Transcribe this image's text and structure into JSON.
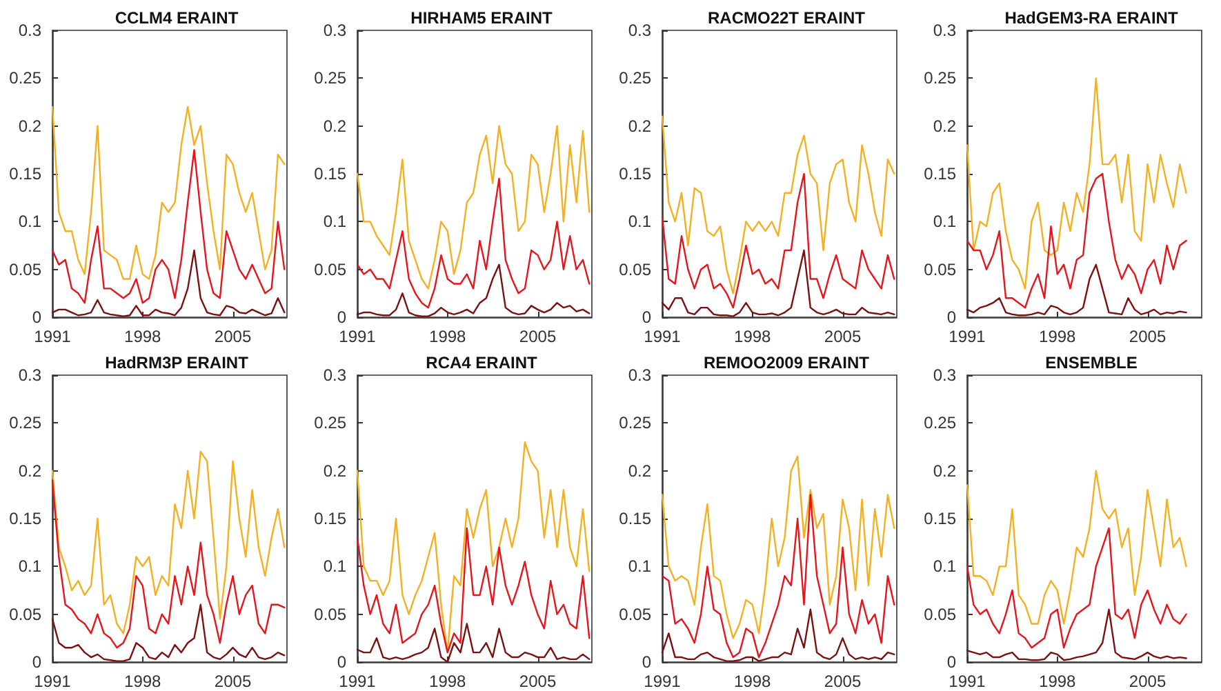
{
  "chart_data": [
    {
      "type": "line",
      "title": "CCLM4 ERAINT",
      "marker": "none",
      "line_style": "solid",
      "xlim": [
        1991,
        2009.2
      ],
      "xticks": [
        1991,
        1998,
        2005
      ],
      "ylim": [
        0,
        0.3
      ],
      "yticks": [
        0,
        0.05,
        0.1,
        0.15,
        0.2,
        0.25,
        0.3
      ],
      "x": [
        1991,
        1991.5,
        1992,
        1992.5,
        1993,
        1993.5,
        1994,
        1994.5,
        1995,
        1995.5,
        1996,
        1996.5,
        1997,
        1997.5,
        1998,
        1998.5,
        1999,
        1999.5,
        2000,
        2000.5,
        2001,
        2001.5,
        2002,
        2002.5,
        2003,
        2003.5,
        2004,
        2004.5,
        2005,
        2005.5,
        2006,
        2006.5,
        2007,
        2007.5,
        2008,
        2008.5,
        2009
      ],
      "series": [
        {
          "color": "#f5b021",
          "values": [
            0.22,
            0.11,
            0.09,
            0.09,
            0.06,
            0.045,
            0.11,
            0.2,
            0.07,
            0.065,
            0.06,
            0.04,
            0.04,
            0.075,
            0.045,
            0.04,
            0.065,
            0.12,
            0.11,
            0.12,
            0.18,
            0.22,
            0.18,
            0.2,
            0.14,
            0.09,
            0.05,
            0.17,
            0.16,
            0.13,
            0.11,
            0.13,
            0.09,
            0.05,
            0.07,
            0.17,
            0.16
          ]
        },
        {
          "color": "#e8141c",
          "values": [
            0.07,
            0.055,
            0.06,
            0.03,
            0.025,
            0.015,
            0.06,
            0.095,
            0.03,
            0.03,
            0.025,
            0.02,
            0.025,
            0.04,
            0.015,
            0.02,
            0.05,
            0.06,
            0.05,
            0.02,
            0.06,
            0.12,
            0.175,
            0.11,
            0.05,
            0.025,
            0.02,
            0.09,
            0.07,
            0.05,
            0.04,
            0.055,
            0.04,
            0.025,
            0.03,
            0.1,
            0.05
          ]
        },
        {
          "color": "#7a1010",
          "values": [
            0.005,
            0.008,
            0.008,
            0.005,
            0.002,
            0.003,
            0.005,
            0.018,
            0.005,
            0.003,
            0.002,
            0.001,
            0.002,
            0.012,
            0.002,
            0.002,
            0.008,
            0.005,
            0.004,
            0.002,
            0.01,
            0.03,
            0.07,
            0.02,
            0.005,
            0.003,
            0.002,
            0.012,
            0.01,
            0.005,
            0.004,
            0.008,
            0.005,
            0.002,
            0.004,
            0.02,
            0.005
          ]
        }
      ]
    },
    {
      "type": "line",
      "title": "HIRHAM5 ERAINT",
      "marker": "none",
      "line_style": "solid",
      "xlim": [
        1991,
        2009.2
      ],
      "xticks": [
        1991,
        1998,
        2005
      ],
      "ylim": [
        0,
        0.3
      ],
      "yticks": [
        0,
        0.05,
        0.1,
        0.15,
        0.2,
        0.25,
        0.3
      ],
      "x": [
        1991,
        1991.5,
        1992,
        1992.5,
        1993,
        1993.5,
        1994,
        1994.5,
        1995,
        1995.5,
        1996,
        1996.5,
        1997,
        1997.5,
        1998,
        1998.5,
        1999,
        1999.5,
        2000,
        2000.5,
        2001,
        2001.5,
        2002,
        2002.5,
        2003,
        2003.5,
        2004,
        2004.5,
        2005,
        2005.5,
        2006,
        2006.5,
        2007,
        2007.5,
        2008,
        2008.5,
        2009
      ],
      "series": [
        {
          "color": "#f5b021",
          "values": [
            0.15,
            0.1,
            0.1,
            0.085,
            0.075,
            0.065,
            0.11,
            0.165,
            0.08,
            0.06,
            0.04,
            0.03,
            0.06,
            0.1,
            0.09,
            0.045,
            0.07,
            0.12,
            0.13,
            0.17,
            0.19,
            0.14,
            0.2,
            0.16,
            0.15,
            0.09,
            0.1,
            0.17,
            0.16,
            0.11,
            0.15,
            0.2,
            0.1,
            0.18,
            0.12,
            0.195,
            0.11
          ]
        },
        {
          "color": "#e8141c",
          "values": [
            0.055,
            0.045,
            0.05,
            0.04,
            0.04,
            0.03,
            0.06,
            0.09,
            0.04,
            0.025,
            0.015,
            0.01,
            0.03,
            0.065,
            0.04,
            0.035,
            0.035,
            0.045,
            0.03,
            0.08,
            0.05,
            0.1,
            0.145,
            0.06,
            0.04,
            0.025,
            0.03,
            0.07,
            0.065,
            0.05,
            0.06,
            0.1,
            0.05,
            0.085,
            0.05,
            0.06,
            0.035
          ]
        },
        {
          "color": "#7a1010",
          "values": [
            0.003,
            0.005,
            0.005,
            0.003,
            0.002,
            0.002,
            0.008,
            0.025,
            0.005,
            0.002,
            0.001,
            0.001,
            0.004,
            0.01,
            0.005,
            0.003,
            0.005,
            0.008,
            0.004,
            0.015,
            0.02,
            0.04,
            0.055,
            0.01,
            0.005,
            0.003,
            0.004,
            0.012,
            0.008,
            0.005,
            0.008,
            0.015,
            0.01,
            0.012,
            0.006,
            0.008,
            0.004
          ]
        }
      ]
    },
    {
      "type": "line",
      "title": "RACMO22T ERAINT",
      "marker": "none",
      "line_style": "solid",
      "xlim": [
        1991,
        2009.2
      ],
      "xticks": [
        1991,
        1998,
        2005
      ],
      "ylim": [
        0,
        0.3
      ],
      "yticks": [
        0,
        0.05,
        0.1,
        0.15,
        0.2,
        0.25,
        0.3
      ],
      "x": [
        1991,
        1991.5,
        1992,
        1992.5,
        1993,
        1993.5,
        1994,
        1994.5,
        1995,
        1995.5,
        1996,
        1996.5,
        1997,
        1997.5,
        1998,
        1998.5,
        1999,
        1999.5,
        2000,
        2000.5,
        2001,
        2001.5,
        2002,
        2002.5,
        2003,
        2003.5,
        2004,
        2004.5,
        2005,
        2005.5,
        2006,
        2006.5,
        2007,
        2007.5,
        2008,
        2008.5,
        2009
      ],
      "series": [
        {
          "color": "#f5b021",
          "values": [
            0.21,
            0.12,
            0.1,
            0.13,
            0.075,
            0.135,
            0.13,
            0.09,
            0.085,
            0.095,
            0.05,
            0.025,
            0.06,
            0.1,
            0.09,
            0.1,
            0.09,
            0.1,
            0.085,
            0.13,
            0.13,
            0.17,
            0.19,
            0.15,
            0.14,
            0.07,
            0.14,
            0.16,
            0.165,
            0.12,
            0.1,
            0.18,
            0.15,
            0.11,
            0.085,
            0.165,
            0.15
          ]
        },
        {
          "color": "#e8141c",
          "values": [
            0.105,
            0.04,
            0.035,
            0.085,
            0.05,
            0.03,
            0.05,
            0.055,
            0.03,
            0.035,
            0.025,
            0.01,
            0.04,
            0.075,
            0.045,
            0.05,
            0.035,
            0.04,
            0.03,
            0.07,
            0.07,
            0.12,
            0.15,
            0.04,
            0.04,
            0.02,
            0.045,
            0.065,
            0.04,
            0.035,
            0.03,
            0.07,
            0.05,
            0.04,
            0.03,
            0.065,
            0.04
          ]
        },
        {
          "color": "#7a1010",
          "values": [
            0.015,
            0.008,
            0.02,
            0.02,
            0.005,
            0.003,
            0.01,
            0.01,
            0.003,
            0.002,
            0.002,
            0.001,
            0.005,
            0.015,
            0.005,
            0.003,
            0.003,
            0.004,
            0.002,
            0.005,
            0.01,
            0.04,
            0.07,
            0.01,
            0.005,
            0.003,
            0.005,
            0.008,
            0.004,
            0.003,
            0.003,
            0.01,
            0.005,
            0.004,
            0.003,
            0.005,
            0.003
          ]
        }
      ]
    },
    {
      "type": "line",
      "title": "HadGEM3-RA ERAINT",
      "marker": "none",
      "line_style": "solid",
      "xlim": [
        1991,
        2009.2
      ],
      "xticks": [
        1991,
        1998,
        2005
      ],
      "ylim": [
        0,
        0.3
      ],
      "yticks": [
        0,
        0.05,
        0.1,
        0.15,
        0.2,
        0.25,
        0.3
      ],
      "x": [
        1991,
        1991.5,
        1992,
        1992.5,
        1993,
        1993.5,
        1994,
        1994.5,
        1995,
        1995.5,
        1996,
        1996.5,
        1997,
        1997.5,
        1998,
        1998.5,
        1999,
        1999.5,
        2000,
        2000.5,
        2001,
        2001.5,
        2002,
        2002.5,
        2003,
        2003.5,
        2004,
        2004.5,
        2005,
        2005.5,
        2006,
        2006.5,
        2007,
        2007.5,
        2008
      ],
      "series": [
        {
          "color": "#f5b021",
          "values": [
            0.18,
            0.07,
            0.1,
            0.095,
            0.13,
            0.14,
            0.09,
            0.06,
            0.05,
            0.03,
            0.1,
            0.12,
            0.07,
            0.065,
            0.07,
            0.12,
            0.09,
            0.13,
            0.11,
            0.16,
            0.25,
            0.16,
            0.16,
            0.17,
            0.12,
            0.17,
            0.09,
            0.08,
            0.16,
            0.12,
            0.17,
            0.14,
            0.115,
            0.16,
            0.13
          ]
        },
        {
          "color": "#e8141c",
          "values": [
            0.08,
            0.07,
            0.07,
            0.05,
            0.065,
            0.09,
            0.02,
            0.02,
            0.015,
            0.01,
            0.03,
            0.045,
            0.02,
            0.095,
            0.045,
            0.055,
            0.03,
            0.06,
            0.065,
            0.13,
            0.145,
            0.15,
            0.1,
            0.06,
            0.04,
            0.055,
            0.045,
            0.025,
            0.05,
            0.06,
            0.035,
            0.075,
            0.05,
            0.075,
            0.08
          ]
        },
        {
          "color": "#7a1010",
          "values": [
            0.008,
            0.005,
            0.01,
            0.012,
            0.015,
            0.02,
            0.005,
            0.003,
            0.002,
            0.002,
            0.003,
            0.005,
            0.003,
            0.012,
            0.01,
            0.005,
            0.003,
            0.005,
            0.01,
            0.04,
            0.055,
            0.03,
            0.005,
            0.004,
            0.003,
            0.02,
            0.008,
            0.003,
            0.005,
            0.008,
            0.003,
            0.005,
            0.004,
            0.006,
            0.005
          ]
        }
      ]
    },
    {
      "type": "line",
      "title": "HadRM3P ERAINT",
      "marker": "none",
      "line_style": "solid",
      "xlim": [
        1991,
        2009.2
      ],
      "xticks": [
        1991,
        1998,
        2005
      ],
      "ylim": [
        0,
        0.3
      ],
      "yticks": [
        0,
        0.05,
        0.1,
        0.15,
        0.2,
        0.25,
        0.3
      ],
      "x": [
        1991,
        1991.5,
        1992,
        1992.5,
        1993,
        1993.5,
        1994,
        1994.5,
        1995,
        1995.5,
        1996,
        1996.5,
        1997,
        1997.5,
        1998,
        1998.5,
        1999,
        1999.5,
        2000,
        2000.5,
        2001,
        2001.5,
        2002,
        2002.5,
        2003,
        2003.5,
        2004,
        2004.5,
        2005,
        2005.5,
        2006,
        2006.5,
        2007,
        2007.5,
        2008,
        2008.5,
        2009
      ],
      "series": [
        {
          "color": "#f5b021",
          "values": [
            0.2,
            0.12,
            0.1,
            0.075,
            0.085,
            0.07,
            0.08,
            0.15,
            0.06,
            0.07,
            0.04,
            0.03,
            0.06,
            0.11,
            0.1,
            0.11,
            0.07,
            0.09,
            0.08,
            0.165,
            0.14,
            0.2,
            0.15,
            0.22,
            0.21,
            0.13,
            0.045,
            0.1,
            0.21,
            0.15,
            0.11,
            0.18,
            0.12,
            0.09,
            0.13,
            0.16,
            0.12
          ]
        },
        {
          "color": "#e8141c",
          "values": [
            0.19,
            0.11,
            0.06,
            0.055,
            0.045,
            0.04,
            0.03,
            0.05,
            0.03,
            0.025,
            0.015,
            0.02,
            0.035,
            0.09,
            0.08,
            0.035,
            0.03,
            0.05,
            0.04,
            0.09,
            0.06,
            0.1,
            0.07,
            0.125,
            0.07,
            0.05,
            0.02,
            0.06,
            0.09,
            0.05,
            0.07,
            0.08,
            0.04,
            0.03,
            0.06,
            0.06,
            0.057
          ]
        },
        {
          "color": "#7a1010",
          "values": [
            0.045,
            0.02,
            0.015,
            0.015,
            0.018,
            0.01,
            0.005,
            0.008,
            0.003,
            0.002,
            0.001,
            0.001,
            0.003,
            0.02,
            0.015,
            0.005,
            0.003,
            0.01,
            0.005,
            0.018,
            0.01,
            0.02,
            0.025,
            0.06,
            0.01,
            0.005,
            0.003,
            0.008,
            0.015,
            0.008,
            0.005,
            0.015,
            0.005,
            0.003,
            0.005,
            0.01,
            0.007
          ]
        }
      ]
    },
    {
      "type": "line",
      "title": "RCA4 ERAINT",
      "marker": "none",
      "line_style": "solid",
      "xlim": [
        1991,
        2009.2
      ],
      "xticks": [
        1991,
        1998,
        2005
      ],
      "ylim": [
        0,
        0.3
      ],
      "yticks": [
        0,
        0.05,
        0.1,
        0.15,
        0.2,
        0.25,
        0.3
      ],
      "x": [
        1991,
        1991.5,
        1992,
        1992.5,
        1993,
        1993.5,
        1994,
        1994.5,
        1995,
        1995.5,
        1996,
        1996.5,
        1997,
        1997.5,
        1998,
        1998.5,
        1999,
        1999.5,
        2000,
        2000.5,
        2001,
        2001.5,
        2002,
        2002.5,
        2003,
        2003.5,
        2004,
        2004.5,
        2005,
        2005.5,
        2006,
        2006.5,
        2007,
        2007.5,
        2008,
        2008.5,
        2009
      ],
      "series": [
        {
          "color": "#f5b021",
          "values": [
            0.2,
            0.1,
            0.085,
            0.085,
            0.07,
            0.085,
            0.15,
            0.07,
            0.05,
            0.07,
            0.085,
            0.11,
            0.135,
            0.06,
            0.01,
            0.09,
            0.08,
            0.16,
            0.13,
            0.16,
            0.18,
            0.1,
            0.12,
            0.15,
            0.12,
            0.15,
            0.23,
            0.21,
            0.2,
            0.13,
            0.18,
            0.12,
            0.18,
            0.12,
            0.1,
            0.16,
            0.095
          ]
        },
        {
          "color": "#e8141c",
          "values": [
            0.13,
            0.08,
            0.05,
            0.07,
            0.04,
            0.03,
            0.06,
            0.02,
            0.025,
            0.03,
            0.05,
            0.06,
            0.08,
            0.04,
            0.01,
            0.03,
            0.02,
            0.14,
            0.07,
            0.07,
            0.1,
            0.06,
            0.12,
            0.08,
            0.06,
            0.08,
            0.105,
            0.07,
            0.05,
            0.035,
            0.085,
            0.05,
            0.06,
            0.04,
            0.035,
            0.09,
            0.025
          ]
        },
        {
          "color": "#7a1010",
          "values": [
            0.013,
            0.01,
            0.01,
            0.025,
            0.005,
            0.003,
            0.005,
            0.003,
            0.005,
            0.008,
            0.01,
            0.015,
            0.035,
            0.005,
            0,
            0.02,
            0.01,
            0.04,
            0.01,
            0.01,
            0.02,
            0.005,
            0.035,
            0.01,
            0.005,
            0.005,
            0.01,
            0.008,
            0.005,
            0.005,
            0.015,
            0.003,
            0.005,
            0.003,
            0.003,
            0.008,
            0.003
          ]
        }
      ]
    },
    {
      "type": "line",
      "title": "REMOO2009 ERAINT",
      "marker": "none",
      "line_style": "solid",
      "xlim": [
        1991,
        2009.2
      ],
      "xticks": [
        1991,
        1998,
        2005
      ],
      "ylim": [
        0,
        0.3
      ],
      "yticks": [
        0,
        0.05,
        0.1,
        0.15,
        0.2,
        0.25,
        0.3
      ],
      "x": [
        1991,
        1991.5,
        1992,
        1992.5,
        1993,
        1993.5,
        1994,
        1994.5,
        1995,
        1995.5,
        1996,
        1996.5,
        1997,
        1997.5,
        1998,
        1998.5,
        1999,
        1999.5,
        2000,
        2000.5,
        2001,
        2001.5,
        2002,
        2002.5,
        2003,
        2003.5,
        2004,
        2004.5,
        2005,
        2005.5,
        2006,
        2006.5,
        2007,
        2007.5,
        2008,
        2008.5,
        2009
      ],
      "series": [
        {
          "color": "#f5b021",
          "values": [
            0.175,
            0.1,
            0.085,
            0.09,
            0.085,
            0.06,
            0.12,
            0.165,
            0.09,
            0.085,
            0.05,
            0.025,
            0.04,
            0.065,
            0.06,
            0.03,
            0.08,
            0.15,
            0.1,
            0.13,
            0.2,
            0.215,
            0.13,
            0.18,
            0.14,
            0.155,
            0.06,
            0.09,
            0.17,
            0.14,
            0.075,
            0.17,
            0.08,
            0.16,
            0.11,
            0.175,
            0.14
          ]
        },
        {
          "color": "#e8141c",
          "values": [
            0.09,
            0.085,
            0.04,
            0.045,
            0.035,
            0.02,
            0.05,
            0.1,
            0.055,
            0.05,
            0.02,
            0.005,
            0.01,
            0.035,
            0.03,
            0.005,
            0.02,
            0.04,
            0.06,
            0.09,
            0.08,
            0.15,
            0.06,
            0.175,
            0.09,
            0.06,
            0.03,
            0.04,
            0.12,
            0.05,
            0.03,
            0.065,
            0.04,
            0.05,
            0.02,
            0.09,
            0.06
          ]
        },
        {
          "color": "#7a1010",
          "values": [
            0.01,
            0.03,
            0.005,
            0.005,
            0.003,
            0.003,
            0.008,
            0.01,
            0.005,
            0.003,
            0.001,
            0.001,
            0.002,
            0.005,
            0.005,
            0.001,
            0.003,
            0.005,
            0.005,
            0.01,
            0.008,
            0.035,
            0.015,
            0.055,
            0.01,
            0.005,
            0.003,
            0.008,
            0.025,
            0.008,
            0.003,
            0.005,
            0.003,
            0.005,
            0.003,
            0.01,
            0.008
          ]
        }
      ]
    },
    {
      "type": "line",
      "title": "ENSEMBLE",
      "marker": "none",
      "line_style": "solid",
      "xlim": [
        1991,
        2009.2
      ],
      "xticks": [
        1991,
        1998,
        2005
      ],
      "ylim": [
        0,
        0.3
      ],
      "yticks": [
        0,
        0.05,
        0.1,
        0.15,
        0.2,
        0.25,
        0.3
      ],
      "x": [
        1991,
        1991.5,
        1992,
        1992.5,
        1993,
        1993.5,
        1994,
        1994.5,
        1995,
        1995.5,
        1996,
        1996.5,
        1997,
        1997.5,
        1998,
        1998.5,
        1999,
        1999.5,
        2000,
        2000.5,
        2001,
        2001.5,
        2002,
        2002.5,
        2003,
        2003.5,
        2004,
        2004.5,
        2005,
        2005.5,
        2006,
        2006.5,
        2007,
        2007.5,
        2008
      ],
      "series": [
        {
          "color": "#f5b021",
          "values": [
            0.185,
            0.09,
            0.09,
            0.085,
            0.07,
            0.1,
            0.1,
            0.16,
            0.07,
            0.06,
            0.04,
            0.04,
            0.07,
            0.085,
            0.075,
            0.04,
            0.075,
            0.12,
            0.11,
            0.14,
            0.2,
            0.16,
            0.15,
            0.16,
            0.12,
            0.14,
            0.07,
            0.11,
            0.18,
            0.14,
            0.1,
            0.17,
            0.12,
            0.13,
            0.1
          ]
        },
        {
          "color": "#e8141c",
          "values": [
            0.1,
            0.06,
            0.05,
            0.055,
            0.04,
            0.03,
            0.05,
            0.075,
            0.03,
            0.025,
            0.015,
            0.02,
            0.025,
            0.05,
            0.055,
            0.015,
            0.035,
            0.05,
            0.055,
            0.06,
            0.1,
            0.12,
            0.14,
            0.05,
            0.045,
            0.055,
            0.025,
            0.06,
            0.075,
            0.055,
            0.04,
            0.06,
            0.045,
            0.04,
            0.05
          ]
        },
        {
          "color": "#7a1010",
          "values": [
            0.012,
            0.01,
            0.008,
            0.01,
            0.005,
            0.005,
            0.008,
            0.01,
            0.003,
            0.003,
            0.002,
            0.002,
            0.003,
            0.01,
            0.008,
            0.002,
            0.003,
            0.005,
            0.006,
            0.008,
            0.01,
            0.02,
            0.055,
            0.01,
            0.005,
            0.004,
            0.003,
            0.006,
            0.01,
            0.006,
            0.004,
            0.006,
            0.004,
            0.005,
            0.004
          ]
        }
      ]
    }
  ]
}
